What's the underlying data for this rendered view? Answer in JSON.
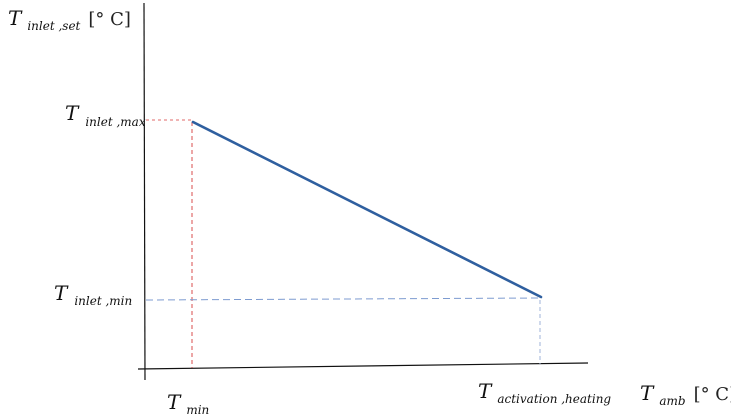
{
  "diagram": {
    "y_axis_label": {
      "main": "T",
      "sub": "inlet ,set",
      "unit": "[° C]"
    },
    "x_axis_label": {
      "main": "T",
      "sub": "amb",
      "unit": "[° C]"
    },
    "y_marks": [
      {
        "main": "T",
        "sub": "inlet ,max"
      },
      {
        "main": "T",
        "sub": "inlet ,min"
      }
    ],
    "x_marks": [
      {
        "main": "T",
        "sub": "min"
      },
      {
        "main": "T",
        "sub": "activation ,heating"
      }
    ],
    "colors": {
      "axis": "#111111",
      "curve": "#2f5f9f",
      "guide_max": "#e06a6a",
      "guide_min": "#7d9bd0"
    }
  }
}
